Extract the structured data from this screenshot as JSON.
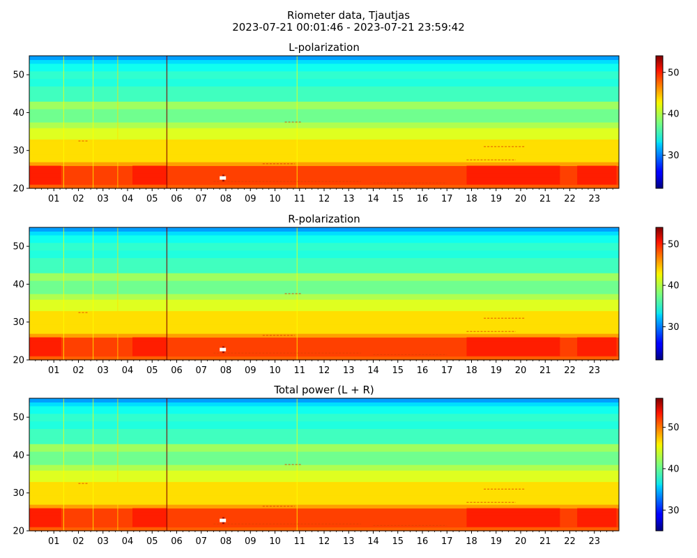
{
  "figure": {
    "title": "Riometer data, Tjautjas",
    "subtitle": "2023-07-21 00:01:46 - 2023-07-21 23:59:42"
  },
  "colormap": "jet",
  "chart_data": [
    {
      "type": "heatmap",
      "title": "L-polarization",
      "x_tick_labels": [
        "01",
        "02",
        "03",
        "04",
        "05",
        "06",
        "07",
        "08",
        "09",
        "10",
        "11",
        "12",
        "13",
        "14",
        "15",
        "16",
        "17",
        "18",
        "19",
        "20",
        "21",
        "22",
        "23"
      ],
      "x_range_hours": [
        0,
        24
      ],
      "ylim": [
        20,
        55
      ],
      "y_ticks": [
        20,
        30,
        40,
        50
      ],
      "colorbar_range": [
        22,
        54
      ],
      "colorbar_ticks": [
        30,
        40,
        50
      ]
    },
    {
      "type": "heatmap",
      "title": "R-polarization",
      "x_tick_labels": [
        "01",
        "02",
        "03",
        "04",
        "05",
        "06",
        "07",
        "08",
        "09",
        "10",
        "11",
        "12",
        "13",
        "14",
        "15",
        "16",
        "17",
        "18",
        "19",
        "20",
        "21",
        "22",
        "23"
      ],
      "x_range_hours": [
        0,
        24
      ],
      "ylim": [
        20,
        55
      ],
      "y_ticks": [
        20,
        30,
        40,
        50
      ],
      "colorbar_range": [
        22,
        54
      ],
      "colorbar_ticks": [
        30,
        40,
        50
      ]
    },
    {
      "type": "heatmap",
      "title": "Total power (L + R)",
      "x_tick_labels": [
        "01",
        "02",
        "03",
        "04",
        "05",
        "06",
        "07",
        "08",
        "09",
        "10",
        "11",
        "12",
        "13",
        "14",
        "15",
        "16",
        "17",
        "18",
        "19",
        "20",
        "21",
        "22",
        "23"
      ],
      "x_range_hours": [
        0,
        24
      ],
      "ylim": [
        20,
        55
      ],
      "y_ticks": [
        20,
        30,
        40,
        50
      ],
      "colorbar_range": [
        25,
        57
      ],
      "colorbar_ticks": [
        30,
        40,
        50
      ]
    }
  ]
}
